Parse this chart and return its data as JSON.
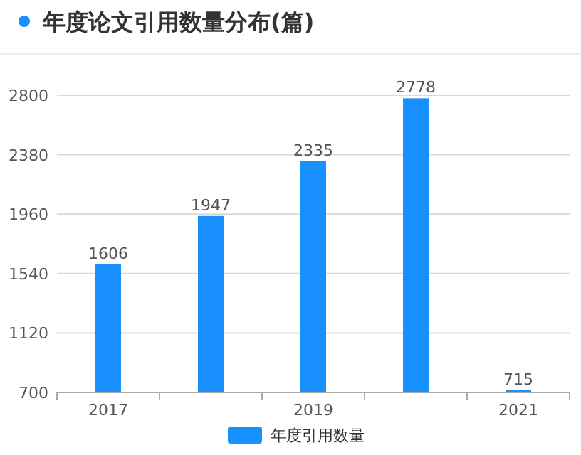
{
  "chart_data": {
    "type": "bar",
    "title": "年度论文引用数量分布(篇)",
    "categories": [
      "2017",
      null,
      "2019",
      null,
      "2021"
    ],
    "series": [
      {
        "name": "年度引用数量",
        "color": "#1890ff",
        "values": [
          1606,
          1947,
          2335,
          2778,
          715
        ]
      }
    ],
    "ylim": [
      700,
      2800
    ],
    "yticks": [
      700,
      1120,
      1540,
      1960,
      2380,
      2800
    ],
    "grid": "y",
    "data_labels": true,
    "legend": "bottom"
  }
}
